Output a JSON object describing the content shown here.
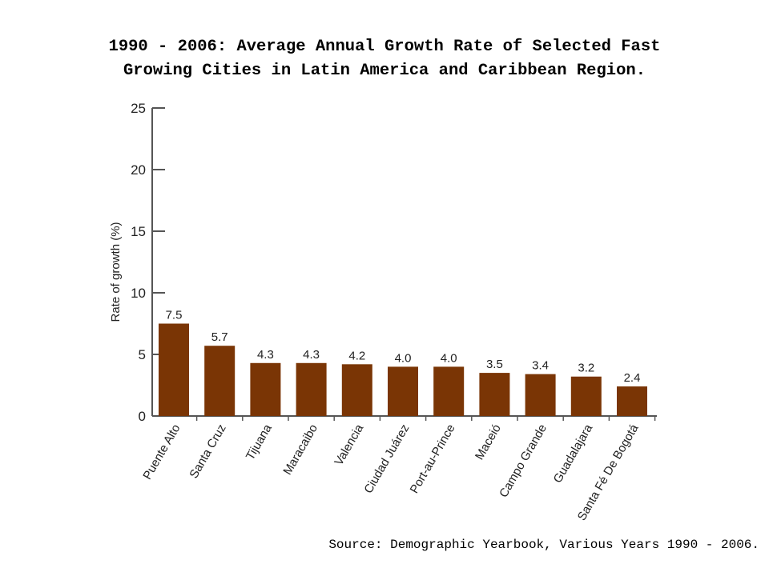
{
  "title": {
    "line1": "1990 - 2006: Average Annual Growth Rate of Selected Fast",
    "line2": "Growing Cities in Latin America and Caribbean Region."
  },
  "source": "Source: Demographic Yearbook, Various Years 1990 - 2006.",
  "chart_data": {
    "type": "bar",
    "title": "1990 - 2006: Average Annual Growth Rate of Selected Fast Growing Cities in Latin America and Caribbean Region.",
    "xlabel": "",
    "ylabel": "Rate of growth (%)",
    "ylim": [
      0,
      25
    ],
    "yticks": [
      0,
      5,
      10,
      15,
      20,
      25
    ],
    "categories": [
      "Puente Alto",
      "Santa Cruz",
      "Tijuana",
      "Maracaibo",
      "Valencia",
      "Ciudad Juárez",
      "Port-au-Prince",
      "Maceió",
      "Campo Grande",
      "Guadalajara",
      "Santa Fé De Bogotá"
    ],
    "values": [
      7.5,
      5.7,
      4.3,
      4.3,
      4.2,
      4.0,
      4.0,
      3.5,
      3.4,
      3.2,
      2.4
    ],
    "value_labels": [
      "7.5",
      "5.7",
      "4.3",
      "4.3",
      "4.2",
      "4.0",
      "4.0",
      "3.5",
      "3.4",
      "3.2",
      "2.4"
    ],
    "grid": false,
    "legend": "none",
    "colors": {
      "bar": "#7a3505",
      "axis": "#555555",
      "text": "#222222"
    }
  }
}
